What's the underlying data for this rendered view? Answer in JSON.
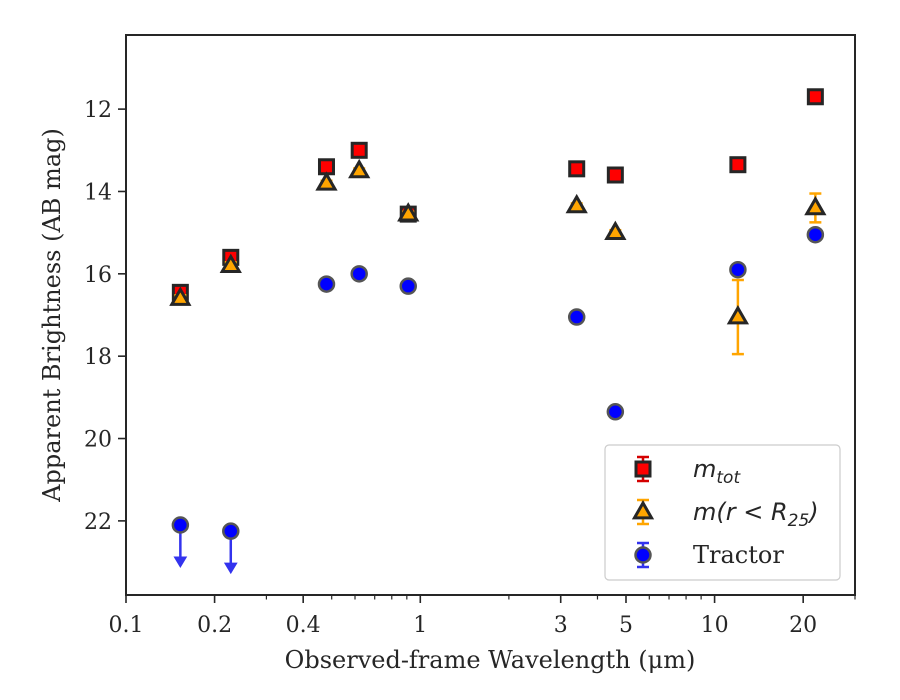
{
  "chart_data": {
    "type": "scatter",
    "xlabel": "Observed-frame Wavelength (μm)",
    "ylabel": "Apparent Brightness (AB mag)",
    "xscale": "log",
    "xlim": [
      0.1,
      30
    ],
    "ylim": [
      23.8,
      10.2
    ],
    "y_inverted": true,
    "grid": false,
    "legend_position": "lower-right",
    "x_ticks": [
      0.1,
      0.2,
      0.4,
      1,
      3,
      5,
      10,
      20
    ],
    "x_tick_labels": [
      "0.1",
      "0.2",
      "0.4",
      "1",
      "3",
      "5",
      "10",
      "20"
    ],
    "y_ticks": [
      12,
      14,
      16,
      18,
      20,
      22
    ],
    "y_tick_labels": [
      "12",
      "14",
      "16",
      "18",
      "20",
      "22"
    ],
    "series": [
      {
        "name": "m_tot",
        "legend_main": "m",
        "legend_sub": "tot",
        "marker": "square",
        "color": "#ff0000",
        "edge_color": "#262626",
        "err_color": "#d40000",
        "points": [
          {
            "x": 0.153,
            "y": 16.45,
            "err": 0.06
          },
          {
            "x": 0.227,
            "y": 15.6,
            "err": 0.06
          },
          {
            "x": 0.48,
            "y": 13.4,
            "err": 0.05
          },
          {
            "x": 0.62,
            "y": 13.0,
            "err": 0.05
          },
          {
            "x": 0.91,
            "y": 14.55,
            "err": 0.05
          },
          {
            "x": 3.4,
            "y": 13.45,
            "err": 0.05
          },
          {
            "x": 4.6,
            "y": 13.6,
            "err": 0.05
          },
          {
            "x": 12.0,
            "y": 13.35,
            "err": 0.05
          },
          {
            "x": 22.0,
            "y": 11.7,
            "err": 0.05
          }
        ]
      },
      {
        "name": "m(r<R25)",
        "legend_main": "m(r < R",
        "legend_sub": "25",
        "legend_end": ")",
        "marker": "triangle",
        "color": "#ffa500",
        "edge_color": "#262626",
        "err_color": "#ffa500",
        "points": [
          {
            "x": 0.153,
            "y": 16.6,
            "err": 0.08
          },
          {
            "x": 0.227,
            "y": 15.8,
            "err": 0.08
          },
          {
            "x": 0.48,
            "y": 13.8,
            "err": 0.06
          },
          {
            "x": 0.62,
            "y": 13.5,
            "err": 0.06
          },
          {
            "x": 0.91,
            "y": 14.55,
            "err": 0.06
          },
          {
            "x": 3.4,
            "y": 14.35,
            "err": 0.06
          },
          {
            "x": 4.6,
            "y": 15.0,
            "err": 0.06
          },
          {
            "x": 12.0,
            "y": 17.05,
            "err": 0.9
          },
          {
            "x": 22.0,
            "y": 14.4,
            "err": 0.35
          }
        ]
      },
      {
        "name": "Tractor",
        "marker": "circle",
        "color": "#0000ff",
        "edge_color": "#555555",
        "err_color": "#3333ee",
        "points": [
          {
            "x": 0.153,
            "y": 22.1,
            "upper_limit": true
          },
          {
            "x": 0.227,
            "y": 22.25,
            "upper_limit": true
          },
          {
            "x": 0.48,
            "y": 16.25,
            "err": 0.05
          },
          {
            "x": 0.62,
            "y": 16.0,
            "err": 0.05
          },
          {
            "x": 0.91,
            "y": 16.3,
            "err": 0.05
          },
          {
            "x": 3.4,
            "y": 17.05,
            "err": 0.05
          },
          {
            "x": 4.6,
            "y": 19.35,
            "err": 0.05
          },
          {
            "x": 12.0,
            "y": 15.9,
            "err": 0.05
          },
          {
            "x": 22.0,
            "y": 15.05,
            "err": 0.05
          }
        ]
      }
    ]
  }
}
